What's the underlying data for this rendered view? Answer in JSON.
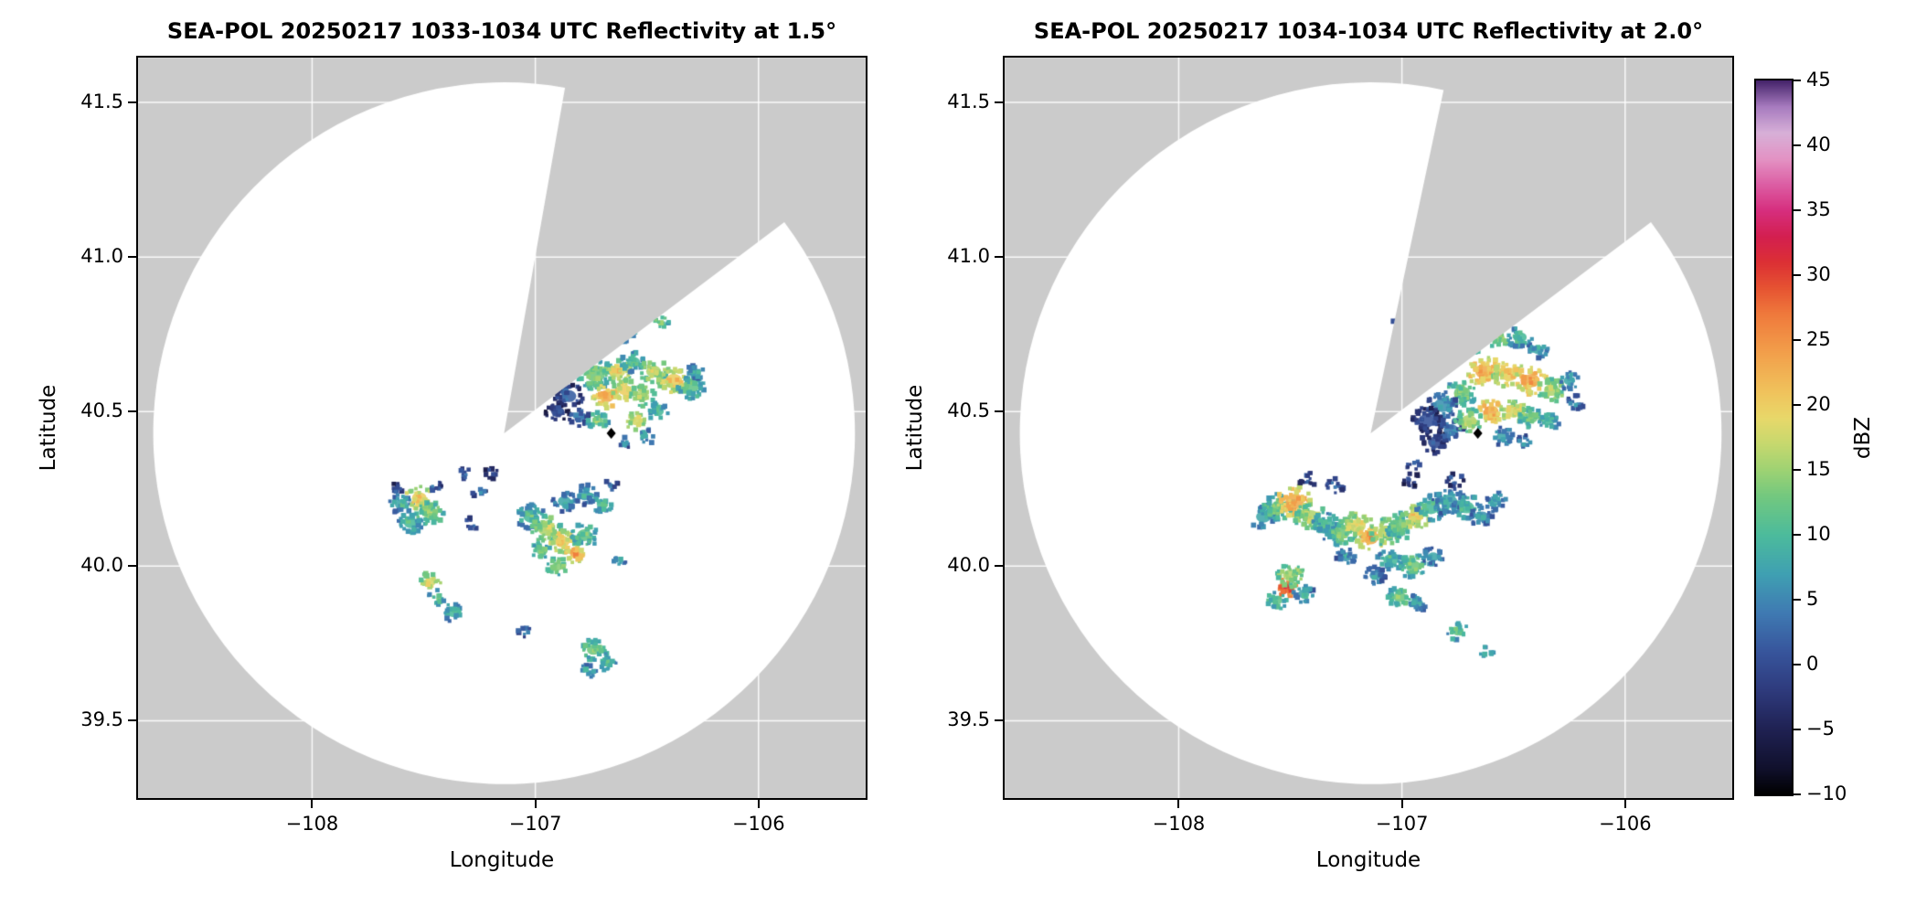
{
  "chart_data": [
    {
      "type": "heatmap",
      "title": "SEA-POL 20250217 1033-1034 UTC Reflectivity at 1.5°",
      "xlabel": "Longitude",
      "ylabel": "Latitude",
      "xlim": [
        -108.78,
        -105.52
      ],
      "ylim": [
        39.25,
        41.645
      ],
      "grid": true,
      "xticks": [
        {
          "v": -108,
          "label": "−108"
        },
        {
          "v": -107,
          "label": "−107"
        },
        {
          "v": -106,
          "label": "−106"
        }
      ],
      "yticks": [
        {
          "v": 39.5,
          "label": "39.5"
        },
        {
          "v": 40.0,
          "label": "40.0"
        },
        {
          "v": 40.5,
          "label": "40.5"
        },
        {
          "v": 41.0,
          "label": "41.0"
        },
        {
          "v": 41.5,
          "label": "41.5"
        }
      ],
      "background_color": "#ffffff",
      "nodata_color": "#cbcbcb",
      "grid_color": "rgba(255,255,255,0.9)",
      "radar": {
        "center_lon": -107.14,
        "center_lat": 40.43,
        "radius_deg_lat": 1.135,
        "blocked_sector_azimuth_deg": [
          10,
          53
        ]
      },
      "site_marker": {
        "lon": -106.66,
        "lat": 40.43,
        "color": "#000000",
        "shape": "diamond"
      },
      "echoes_lon_lat_dbz_radius": [
        [
          -106.6,
          40.76,
          12,
          0.035
        ],
        [
          -106.44,
          40.79,
          15,
          0.025
        ],
        [
          -106.82,
          40.66,
          8,
          0.02
        ],
        [
          -107.0,
          40.74,
          6,
          0.015
        ],
        [
          -106.73,
          40.62,
          15,
          0.05
        ],
        [
          -106.63,
          40.63,
          20,
          0.04
        ],
        [
          -106.56,
          40.66,
          12,
          0.035
        ],
        [
          -106.47,
          40.63,
          18,
          0.04
        ],
        [
          -106.38,
          40.6,
          22,
          0.045
        ],
        [
          -106.3,
          40.58,
          14,
          0.04
        ],
        [
          -106.28,
          40.63,
          10,
          0.025
        ],
        [
          -106.68,
          40.55,
          25,
          0.04
        ],
        [
          -106.6,
          40.57,
          22,
          0.035
        ],
        [
          -106.52,
          40.55,
          18,
          0.035
        ],
        [
          -106.85,
          40.55,
          4,
          0.04
        ],
        [
          -106.9,
          40.5,
          2,
          0.035
        ],
        [
          -106.8,
          40.48,
          6,
          0.03
        ],
        [
          -106.72,
          40.47,
          15,
          0.03
        ],
        [
          -106.55,
          40.47,
          20,
          0.03
        ],
        [
          -106.45,
          40.5,
          12,
          0.03
        ],
        [
          -106.5,
          40.42,
          10,
          0.025
        ],
        [
          -106.6,
          40.4,
          8,
          0.02
        ],
        [
          -107.6,
          40.2,
          10,
          0.035
        ],
        [
          -107.52,
          40.22,
          22,
          0.04
        ],
        [
          -107.47,
          40.17,
          16,
          0.04
        ],
        [
          -107.56,
          40.14,
          12,
          0.035
        ],
        [
          -107.62,
          40.25,
          4,
          0.02
        ],
        [
          -107.45,
          40.26,
          5,
          0.02
        ],
        [
          -107.32,
          40.3,
          4,
          0.02
        ],
        [
          -107.25,
          40.24,
          6,
          0.02
        ],
        [
          -107.2,
          40.3,
          3,
          0.02
        ],
        [
          -107.28,
          40.14,
          5,
          0.02
        ],
        [
          -107.02,
          40.16,
          12,
          0.04
        ],
        [
          -106.95,
          40.12,
          18,
          0.045
        ],
        [
          -106.88,
          40.08,
          22,
          0.04
        ],
        [
          -106.82,
          40.04,
          25,
          0.03
        ],
        [
          -106.78,
          40.1,
          14,
          0.04
        ],
        [
          -106.9,
          40.0,
          16,
          0.03
        ],
        [
          -106.97,
          40.05,
          14,
          0.03
        ],
        [
          -106.87,
          40.21,
          10,
          0.035
        ],
        [
          -106.78,
          40.23,
          9,
          0.035
        ],
        [
          -106.7,
          40.2,
          12,
          0.03
        ],
        [
          -106.66,
          40.26,
          4,
          0.02
        ],
        [
          -106.62,
          40.02,
          10,
          0.02
        ],
        [
          -107.47,
          39.95,
          20,
          0.03
        ],
        [
          -107.44,
          39.9,
          14,
          0.025
        ],
        [
          -107.37,
          39.85,
          12,
          0.03
        ],
        [
          -107.05,
          39.79,
          6,
          0.02
        ],
        [
          -106.74,
          39.73,
          15,
          0.035
        ],
        [
          -106.68,
          39.69,
          13,
          0.03
        ],
        [
          -106.76,
          39.66,
          10,
          0.025
        ]
      ]
    },
    {
      "type": "heatmap",
      "title": "SEA-POL 20250217 1034-1034 UTC Reflectivity at 2.0°",
      "xlabel": "Longitude",
      "ylabel": "Latitude",
      "xlim": [
        -108.78,
        -105.52
      ],
      "ylim": [
        39.25,
        41.645
      ],
      "grid": true,
      "xticks": [
        {
          "v": -108,
          "label": "−108"
        },
        {
          "v": -107,
          "label": "−107"
        },
        {
          "v": -106,
          "label": "−106"
        }
      ],
      "yticks": [
        {
          "v": 39.5,
          "label": "39.5"
        },
        {
          "v": 40.0,
          "label": "40.0"
        },
        {
          "v": 40.5,
          "label": "40.5"
        },
        {
          "v": 41.0,
          "label": "41.0"
        },
        {
          "v": 41.5,
          "label": "41.5"
        }
      ],
      "background_color": "#ffffff",
      "nodata_color": "#cbcbcb",
      "grid_color": "rgba(255,255,255,0.9)",
      "radar": {
        "center_lon": -107.14,
        "center_lat": 40.43,
        "radius_deg_lat": 1.135,
        "blocked_sector_azimuth_deg": [
          12,
          53
        ]
      },
      "site_marker": {
        "lon": -106.66,
        "lat": 40.43,
        "color": "#000000",
        "shape": "diamond"
      },
      "echoes_lon_lat_dbz_radius": [
        [
          -107.02,
          40.8,
          8,
          0.02
        ],
        [
          -106.98,
          40.86,
          10,
          0.02
        ],
        [
          -106.78,
          40.7,
          12,
          0.04
        ],
        [
          -106.68,
          40.72,
          15,
          0.035
        ],
        [
          -106.57,
          40.74,
          16,
          0.035
        ],
        [
          -106.47,
          40.74,
          12,
          0.035
        ],
        [
          -106.39,
          40.7,
          10,
          0.03
        ],
        [
          -106.63,
          40.63,
          25,
          0.05
        ],
        [
          -106.52,
          40.62,
          22,
          0.045
        ],
        [
          -106.42,
          40.6,
          25,
          0.045
        ],
        [
          -106.33,
          40.57,
          18,
          0.04
        ],
        [
          -106.25,
          40.6,
          10,
          0.03
        ],
        [
          -106.73,
          40.56,
          15,
          0.045
        ],
        [
          -106.82,
          40.52,
          8,
          0.045
        ],
        [
          -106.89,
          40.47,
          3,
          0.045
        ],
        [
          -106.85,
          40.4,
          2,
          0.04
        ],
        [
          -106.78,
          40.44,
          6,
          0.04
        ],
        [
          -106.7,
          40.47,
          18,
          0.04
        ],
        [
          -106.6,
          40.5,
          25,
          0.04
        ],
        [
          -106.5,
          40.5,
          20,
          0.04
        ],
        [
          -106.42,
          40.48,
          15,
          0.035
        ],
        [
          -106.34,
          40.47,
          12,
          0.03
        ],
        [
          -106.55,
          40.42,
          10,
          0.03
        ],
        [
          -106.45,
          40.4,
          8,
          0.025
        ],
        [
          -106.22,
          40.53,
          8,
          0.025
        ],
        [
          -106.95,
          40.33,
          5,
          0.02
        ],
        [
          -107.62,
          40.16,
          10,
          0.04
        ],
        [
          -107.55,
          40.19,
          15,
          0.045
        ],
        [
          -107.48,
          40.21,
          25,
          0.05
        ],
        [
          -107.41,
          40.16,
          18,
          0.045
        ],
        [
          -107.34,
          40.13,
          12,
          0.045
        ],
        [
          -107.27,
          40.11,
          15,
          0.045
        ],
        [
          -107.2,
          40.13,
          20,
          0.045
        ],
        [
          -107.14,
          40.09,
          25,
          0.04
        ],
        [
          -107.07,
          40.11,
          18,
          0.045
        ],
        [
          -107.0,
          40.13,
          15,
          0.045
        ],
        [
          -106.94,
          40.16,
          22,
          0.04
        ],
        [
          -106.87,
          40.19,
          12,
          0.045
        ],
        [
          -106.79,
          40.21,
          10,
          0.045
        ],
        [
          -106.71,
          40.19,
          12,
          0.04
        ],
        [
          -106.64,
          40.16,
          8,
          0.035
        ],
        [
          -106.58,
          40.21,
          10,
          0.03
        ],
        [
          -107.42,
          40.28,
          3,
          0.025
        ],
        [
          -107.3,
          40.26,
          5,
          0.025
        ],
        [
          -106.96,
          40.28,
          3,
          0.025
        ],
        [
          -106.76,
          40.28,
          4,
          0.025
        ],
        [
          -107.05,
          40.02,
          12,
          0.04
        ],
        [
          -106.95,
          40.0,
          15,
          0.04
        ],
        [
          -106.86,
          40.03,
          10,
          0.03
        ],
        [
          -107.25,
          40.03,
          8,
          0.03
        ],
        [
          -107.52,
          39.93,
          32,
          0.03
        ],
        [
          -107.5,
          39.97,
          18,
          0.04
        ],
        [
          -107.56,
          39.89,
          14,
          0.03
        ],
        [
          -107.44,
          39.91,
          10,
          0.03
        ],
        [
          -107.12,
          39.97,
          8,
          0.03
        ],
        [
          -107.01,
          39.9,
          15,
          0.035
        ],
        [
          -106.93,
          39.88,
          10,
          0.03
        ],
        [
          -106.75,
          39.79,
          14,
          0.03
        ],
        [
          -106.62,
          39.72,
          12,
          0.02
        ]
      ]
    }
  ],
  "colorbar": {
    "label": "dBZ",
    "min": -10,
    "max": 45,
    "ticks": [
      {
        "v": 45,
        "label": "45"
      },
      {
        "v": 40,
        "label": "40"
      },
      {
        "v": 35,
        "label": "35"
      },
      {
        "v": 30,
        "label": "30"
      },
      {
        "v": 25,
        "label": "25"
      },
      {
        "v": 20,
        "label": "20"
      },
      {
        "v": 15,
        "label": "15"
      },
      {
        "v": 10,
        "label": "10"
      },
      {
        "v": 5,
        "label": "5"
      },
      {
        "v": 0,
        "label": "0"
      },
      {
        "v": -5,
        "label": "−5"
      },
      {
        "v": -10,
        "label": "−10"
      }
    ],
    "stops": [
      {
        "v": -10,
        "c": "#000000"
      },
      {
        "v": -8,
        "c": "#10102c"
      },
      {
        "v": -5,
        "c": "#1f2152"
      },
      {
        "v": -2,
        "c": "#2e3a7c"
      },
      {
        "v": 1,
        "c": "#37559c"
      },
      {
        "v": 4,
        "c": "#3f7ab2"
      },
      {
        "v": 7,
        "c": "#3fa0b2"
      },
      {
        "v": 10,
        "c": "#4cbb9c"
      },
      {
        "v": 13,
        "c": "#73c87f"
      },
      {
        "v": 15,
        "c": "#9ed273"
      },
      {
        "v": 17,
        "c": "#c6d86e"
      },
      {
        "v": 19,
        "c": "#e8d86a"
      },
      {
        "v": 21,
        "c": "#f0c35c"
      },
      {
        "v": 24,
        "c": "#f2a04b"
      },
      {
        "v": 27,
        "c": "#ef7a3c"
      },
      {
        "v": 29,
        "c": "#e65432"
      },
      {
        "v": 31,
        "c": "#dc3034"
      },
      {
        "v": 33,
        "c": "#d31f50"
      },
      {
        "v": 35,
        "c": "#d62e7e"
      },
      {
        "v": 37,
        "c": "#dc5ea4"
      },
      {
        "v": 39,
        "c": "#e393c4"
      },
      {
        "v": 41,
        "c": "#d7b0d8"
      },
      {
        "v": 43,
        "c": "#a77bbf"
      },
      {
        "v": 45,
        "c": "#45246b"
      }
    ]
  }
}
